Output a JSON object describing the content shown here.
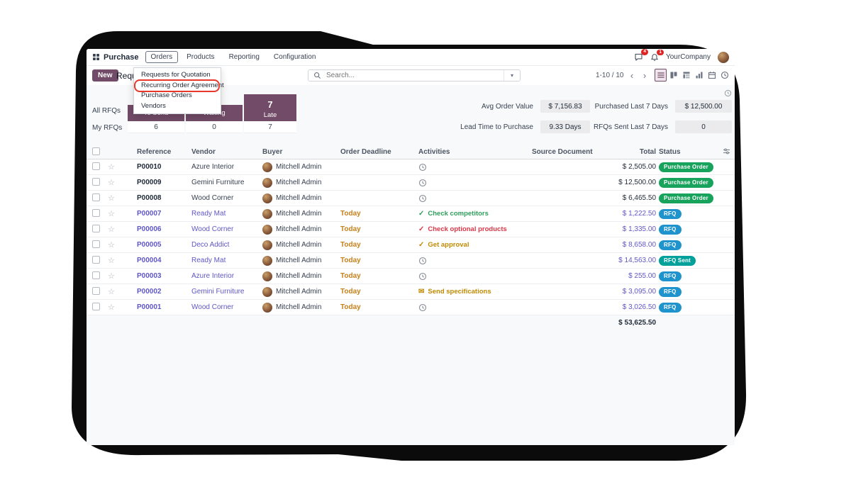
{
  "topbar": {
    "app_name": "Purchase",
    "menus": [
      "Orders",
      "Products",
      "Reporting",
      "Configuration"
    ],
    "active_menu": "Orders",
    "messages_badge": "4",
    "activities_badge": "1",
    "company": "YourCompany"
  },
  "orders_menu": {
    "items": [
      "Requests for Quotation",
      "Recurring Order Agreement",
      "Purchase Orders",
      "Vendors"
    ],
    "highlight_index": 1
  },
  "control": {
    "new_label": "New",
    "title": "Requests for Quotation",
    "search_placeholder": "Search...",
    "pager": "1-10 / 10",
    "views": [
      {
        "name": "list",
        "selected": true
      },
      {
        "name": "kanban",
        "selected": false
      },
      {
        "name": "pivot",
        "selected": false
      },
      {
        "name": "graph",
        "selected": false
      },
      {
        "name": "calendar",
        "selected": false
      },
      {
        "name": "activity",
        "selected": false
      }
    ]
  },
  "dashboard": {
    "row_labels": [
      "All RFQs",
      "My RFQs"
    ],
    "columns": [
      "To Send",
      "Waiting",
      "Late"
    ],
    "late_count": "7",
    "my_values": [
      "6",
      "0",
      "7"
    ],
    "kpis": [
      {
        "label": "Avg Order Value",
        "value": "$ 7,156.83"
      },
      {
        "label": "Purchased Last 7 Days",
        "value": "$ 12,500.00"
      },
      {
        "label": "Lead Time to Purchase",
        "value": "9.33 Days"
      },
      {
        "label": "RFQs Sent Last 7 Days",
        "value": "0"
      }
    ]
  },
  "table": {
    "headers": [
      "Reference",
      "Vendor",
      "Buyer",
      "Order Deadline",
      "Activities",
      "Source Document",
      "Total",
      "Status"
    ],
    "rows": [
      {
        "reference": "P00010",
        "vendor": "Azure Interior",
        "buyer": "Mitchell Admin",
        "deadline": "",
        "activity": {
          "icon": "clock",
          "label": "",
          "state": "none"
        },
        "source": "",
        "total": "$ 2,505.00",
        "status": "Purchase Order",
        "status_key": "po",
        "decoration": ""
      },
      {
        "reference": "P00009",
        "vendor": "Gemini Furniture",
        "buyer": "Mitchell Admin",
        "deadline": "",
        "activity": {
          "icon": "clock",
          "label": "",
          "state": "none"
        },
        "source": "",
        "total": "$ 12,500.00",
        "status": "Purchase Order",
        "status_key": "po",
        "decoration": ""
      },
      {
        "reference": "P00008",
        "vendor": "Wood Corner",
        "buyer": "Mitchell Admin",
        "deadline": "",
        "activity": {
          "icon": "clock",
          "label": "",
          "state": "none"
        },
        "source": "",
        "total": "$ 6,465.50",
        "status": "Purchase Order",
        "status_key": "po",
        "decoration": ""
      },
      {
        "reference": "P00007",
        "vendor": "Ready Mat",
        "buyer": "Mitchell Admin",
        "deadline": "Today",
        "activity": {
          "icon": "check",
          "label": "Check competitors",
          "state": "planned"
        },
        "source": "",
        "total": "$ 1,222.50",
        "status": "RFQ",
        "status_key": "rfq",
        "decoration": "info"
      },
      {
        "reference": "P00006",
        "vendor": "Wood Corner",
        "buyer": "Mitchell Admin",
        "deadline": "Today",
        "activity": {
          "icon": "check",
          "label": "Check optional products",
          "state": "overdue"
        },
        "source": "",
        "total": "$ 1,335.00",
        "status": "RFQ",
        "status_key": "rfq",
        "decoration": "info"
      },
      {
        "reference": "P00005",
        "vendor": "Deco Addict",
        "buyer": "Mitchell Admin",
        "deadline": "Today",
        "activity": {
          "icon": "check",
          "label": "Get approval",
          "state": "today"
        },
        "source": "",
        "total": "$ 8,658.00",
        "status": "RFQ",
        "status_key": "rfq",
        "decoration": "info"
      },
      {
        "reference": "P00004",
        "vendor": "Ready Mat",
        "buyer": "Mitchell Admin",
        "deadline": "Today",
        "activity": {
          "icon": "clock",
          "label": "",
          "state": "none"
        },
        "source": "",
        "total": "$ 14,563.00",
        "status": "RFQ Sent",
        "status_key": "rfq_sent",
        "decoration": "info"
      },
      {
        "reference": "P00003",
        "vendor": "Azure Interior",
        "buyer": "Mitchell Admin",
        "deadline": "Today",
        "activity": {
          "icon": "clock",
          "label": "",
          "state": "none"
        },
        "source": "",
        "total": "$ 255.00",
        "status": "RFQ",
        "status_key": "rfq",
        "decoration": "info"
      },
      {
        "reference": "P00002",
        "vendor": "Gemini Furniture",
        "buyer": "Mitchell Admin",
        "deadline": "Today",
        "activity": {
          "icon": "mail",
          "label": "Send specifications",
          "state": "today"
        },
        "source": "",
        "total": "$ 3,095.00",
        "status": "RFQ",
        "status_key": "rfq",
        "decoration": "info"
      },
      {
        "reference": "P00001",
        "vendor": "Wood Corner",
        "buyer": "Mitchell Admin",
        "deadline": "Today",
        "activity": {
          "icon": "clock",
          "label": "",
          "state": "none"
        },
        "source": "",
        "total": "$ 3,026.50",
        "status": "RFQ",
        "status_key": "rfq",
        "decoration": "info"
      }
    ],
    "footer_total": "$ 53,625.50"
  },
  "colors": {
    "primary": "#714B67",
    "info_row": "#5f57c6",
    "deadline_today": "#c7811b",
    "status_po": "#17a35c",
    "status_rfq": "#1e93cc",
    "status_rfq_sent": "#00a09b",
    "activity_planned": "#2e9e5b",
    "activity_overdue": "#dc3545",
    "activity_today": "#c08a00",
    "highlight": "#e8382c",
    "notification": "#dc2626"
  }
}
